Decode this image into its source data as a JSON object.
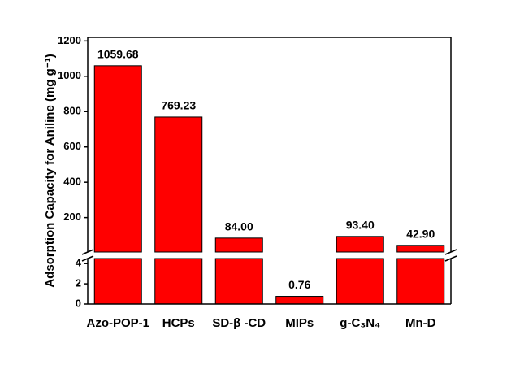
{
  "chart_data": {
    "type": "bar",
    "y_label": "Adsorption Capacity for Aniline (mg g⁻¹)",
    "categories": [
      "Azo-POP-1",
      "HCPs",
      "SD-β -CD",
      "MIPs",
      "g-C₃N₄",
      "Mn-D"
    ],
    "values": [
      1059.68,
      769.23,
      84.0,
      0.76,
      93.4,
      42.9
    ],
    "value_labels": [
      "1059.68",
      "769.23",
      "84.00",
      "0.76",
      "93.40",
      "42.90"
    ],
    "color": "#ff0000",
    "broken_axis": true,
    "ylim_lower": [
      0,
      4.5
    ],
    "yticks_lower": [
      0,
      2,
      4
    ],
    "ylim_upper": [
      5,
      1220
    ],
    "yticks_upper": [
      200,
      400,
      600,
      800,
      1000,
      1200
    ]
  }
}
